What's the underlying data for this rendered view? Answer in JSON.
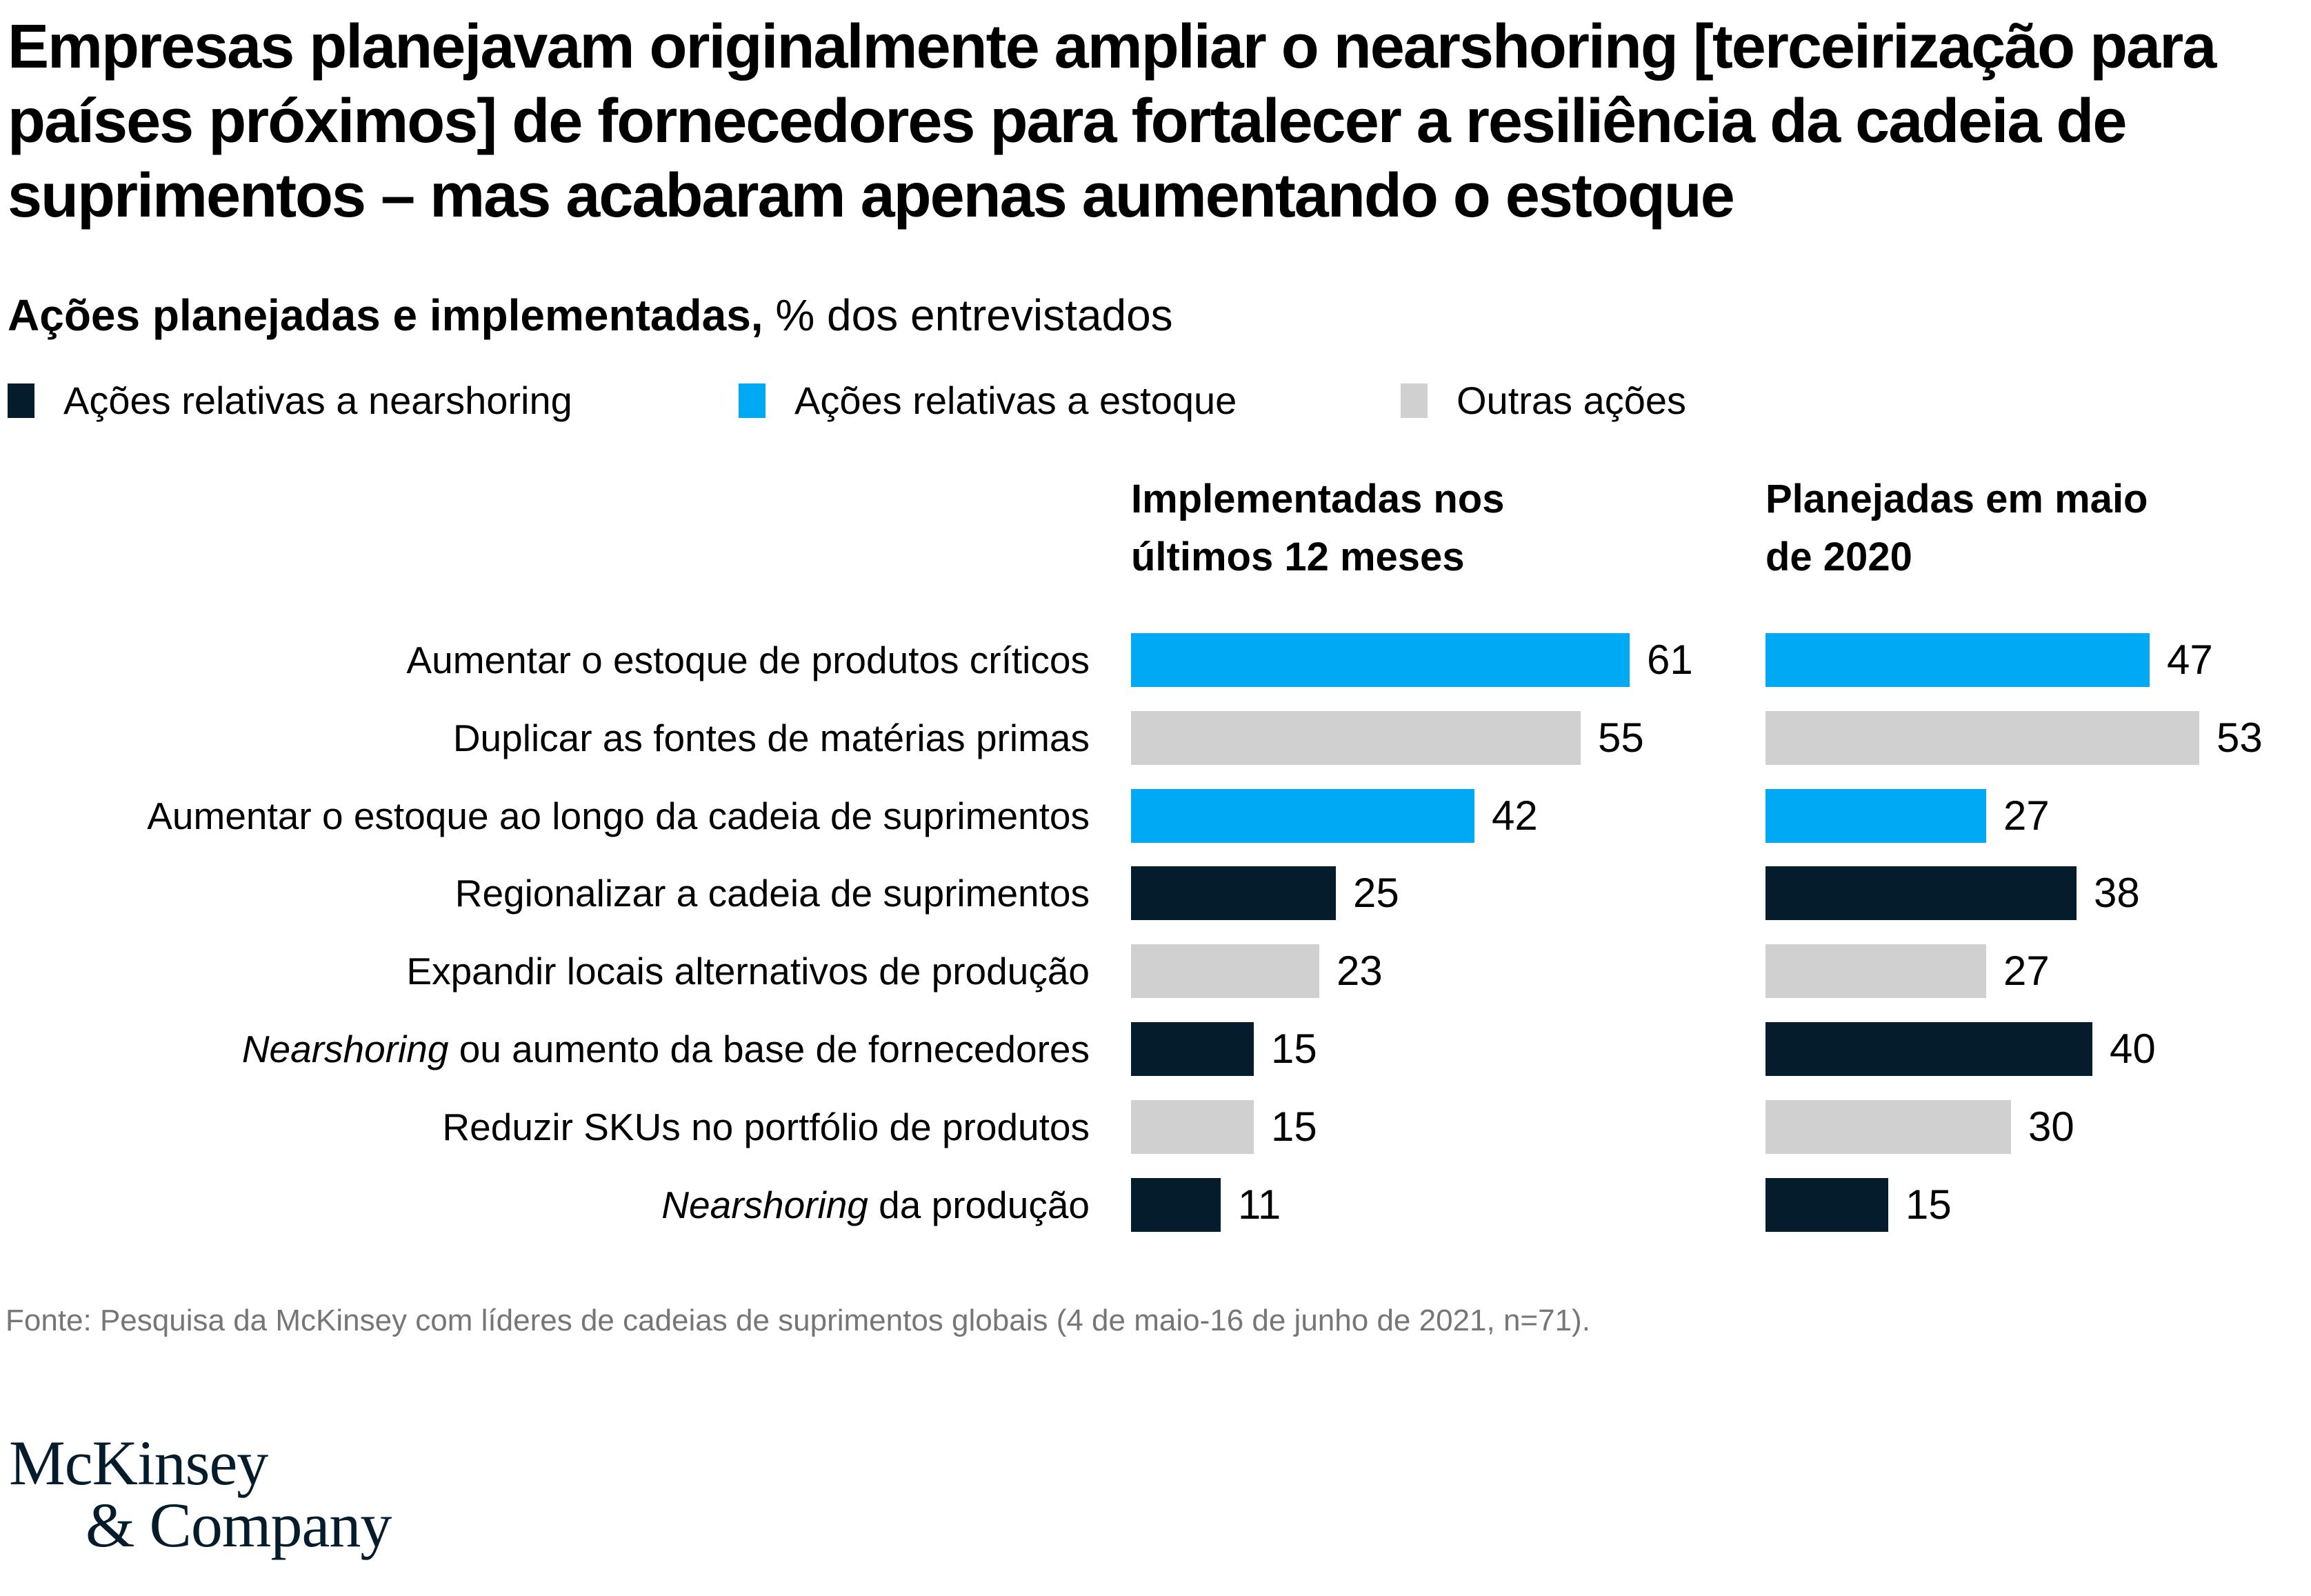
{
  "header": {
    "title_lines": [
      "Empresas planejavam originalmente ampliar o nearshoring [terceirização para",
      "países próximos] de fornecedores para fortalecer a resiliência da cadeia de",
      "suprimentos – mas acabaram apenas aumentando o estoque"
    ],
    "subtitle_bold": "Ações planejadas e implementadas,",
    "subtitle_regular": " % dos entrevistados"
  },
  "legend": [
    {
      "key": "nearshoring",
      "label": "Ações relativas a nearshoring",
      "color": "#051C2C"
    },
    {
      "key": "estoque",
      "label": "Ações relativas a estoque",
      "color": "#00A9F4"
    },
    {
      "key": "outras",
      "label": "Outras ações",
      "color": "#D0D0D0"
    }
  ],
  "chart_data": {
    "type": "bar",
    "orientation": "horizontal",
    "title": "Ações planejadas e implementadas, % dos entrevistados",
    "value_unit": "% dos entrevistados",
    "xlim": [
      0,
      61
    ],
    "grid": false,
    "legend_position": "top",
    "column_headers": [
      {
        "name": "Implementadas nos últimos 12 meses",
        "lines": [
          "Implementadas nos",
          "últimos 12 meses"
        ]
      },
      {
        "name": "Planejadas em maio de 2020",
        "lines": [
          "Planejadas em maio",
          "de 2020"
        ]
      }
    ],
    "categories": [
      {
        "group": "estoque",
        "segments": [
          {
            "text": "Aumentar o estoque de produtos críticos"
          }
        ]
      },
      {
        "group": "outras",
        "segments": [
          {
            "text": "Duplicar as fontes de matérias primas"
          }
        ]
      },
      {
        "group": "estoque",
        "segments": [
          {
            "text": "Aumentar o estoque ao longo da cadeia de suprimentos"
          }
        ]
      },
      {
        "group": "nearshoring",
        "segments": [
          {
            "text": "Regionalizar a cadeia de suprimentos"
          }
        ]
      },
      {
        "group": "outras",
        "segments": [
          {
            "text": "Expandir locais alternativos de produção"
          }
        ]
      },
      {
        "group": "nearshoring",
        "segments": [
          {
            "text": "Nearshoring",
            "italic": true
          },
          {
            "text": " ou aumento da base de fornecedores"
          }
        ]
      },
      {
        "group": "outras",
        "segments": [
          {
            "text": "Reduzir SKUs no portfólio de produtos"
          }
        ]
      },
      {
        "group": "nearshoring",
        "segments": [
          {
            "text": "Nearshoring",
            "italic": true
          },
          {
            "text": " da produção"
          }
        ]
      }
    ],
    "series": [
      {
        "name": "Implementadas nos últimos 12 meses",
        "values": [
          61,
          55,
          42,
          25,
          23,
          15,
          15,
          11
        ]
      },
      {
        "name": "Planejadas em maio de 2020",
        "values": [
          47,
          53,
          27,
          38,
          27,
          40,
          30,
          15
        ]
      }
    ]
  },
  "footer": {
    "source": "Fonte: Pesquisa da McKinsey com líderes de cadeias de suprimentos globais (4 de maio-16 de junho de 2021, n=71)."
  },
  "logo": {
    "line1": "McKinsey",
    "line2": "& Company"
  },
  "colors": {
    "nearshoring": "#051C2C",
    "estoque": "#00A9F4",
    "outras": "#D0D0D0",
    "text": "#000000",
    "source_text": "#767676"
  }
}
